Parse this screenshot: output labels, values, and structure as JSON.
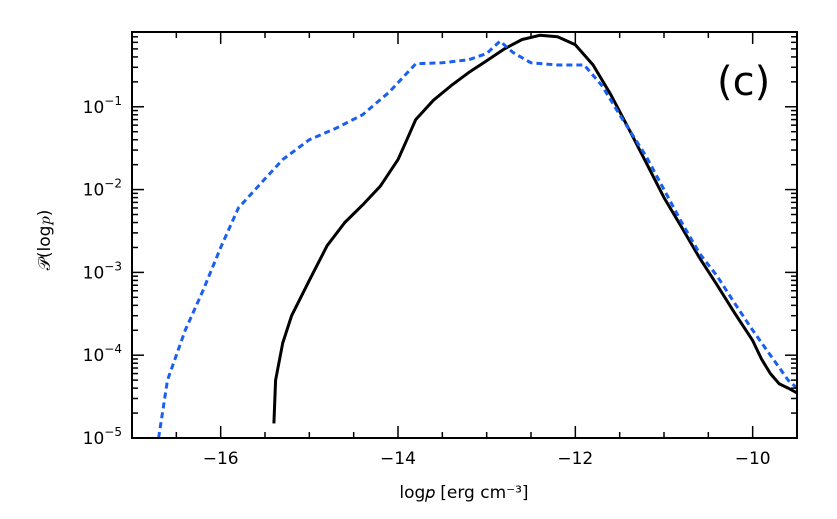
{
  "chart_data": {
    "type": "line",
    "title": "",
    "annotation": "(c)",
    "xlabel": "log𝑝 [erg cm⁻³]",
    "ylabel": "𝒫(log𝑝)",
    "xlim": [
      -17.0,
      -9.5
    ],
    "ylim": [
      1e-05,
      0.8
    ],
    "yscale": "log",
    "grid": false,
    "legend": "none",
    "x_ticks": [
      {
        "value": -16,
        "label": "−16"
      },
      {
        "value": -14,
        "label": "−14"
      },
      {
        "value": -12,
        "label": "−12"
      },
      {
        "value": -10,
        "label": "−10"
      }
    ],
    "y_ticks": [
      {
        "value": 1e-05,
        "base": "10",
        "exp": "−5"
      },
      {
        "value": 0.0001,
        "base": "10",
        "exp": "−4"
      },
      {
        "value": 0.001,
        "base": "10",
        "exp": "−3"
      },
      {
        "value": 0.01,
        "base": "10",
        "exp": "−2"
      },
      {
        "value": 0.1,
        "base": "10",
        "exp": "−1"
      }
    ],
    "series": [
      {
        "color": "#000000",
        "style": "solid",
        "points": [
          [
            -15.4,
            1.5e-05
          ],
          [
            -15.38,
            5e-05
          ],
          [
            -15.3,
            0.00014
          ],
          [
            -15.2,
            0.0003
          ],
          [
            -15.0,
            0.0008
          ],
          [
            -14.8,
            0.0021
          ],
          [
            -14.6,
            0.004
          ],
          [
            -14.4,
            0.0065
          ],
          [
            -14.2,
            0.011
          ],
          [
            -14.0,
            0.023
          ],
          [
            -13.9,
            0.04
          ],
          [
            -13.8,
            0.07
          ],
          [
            -13.6,
            0.12
          ],
          [
            -13.4,
            0.18
          ],
          [
            -13.2,
            0.26
          ],
          [
            -13.0,
            0.36
          ],
          [
            -12.8,
            0.5
          ],
          [
            -12.6,
            0.65
          ],
          [
            -12.4,
            0.73
          ],
          [
            -12.2,
            0.7
          ],
          [
            -12.0,
            0.56
          ],
          [
            -11.8,
            0.32
          ],
          [
            -11.6,
            0.14
          ],
          [
            -11.4,
            0.055
          ],
          [
            -11.2,
            0.021
          ],
          [
            -11.0,
            0.008
          ],
          [
            -10.8,
            0.0035
          ],
          [
            -10.6,
            0.0015
          ],
          [
            -10.4,
            0.0007
          ],
          [
            -10.2,
            0.00032
          ],
          [
            -10.0,
            0.00015
          ],
          [
            -9.9,
            9e-05
          ],
          [
            -9.8,
            6e-05
          ],
          [
            -9.7,
            4.5e-05
          ],
          [
            -9.6,
            4e-05
          ],
          [
            -9.5,
            3.5e-05
          ]
        ]
      },
      {
        "color": "#1a5ff0",
        "style": "dashed",
        "points": [
          [
            -16.7,
            1e-05
          ],
          [
            -16.6,
            5e-05
          ],
          [
            -16.4,
            0.0002
          ],
          [
            -16.2,
            0.0006
          ],
          [
            -16.0,
            0.002
          ],
          [
            -15.8,
            0.006
          ],
          [
            -15.5,
            0.0135
          ],
          [
            -15.3,
            0.023
          ],
          [
            -15.0,
            0.04
          ],
          [
            -14.7,
            0.055
          ],
          [
            -14.4,
            0.08
          ],
          [
            -14.1,
            0.15
          ],
          [
            -13.8,
            0.33
          ],
          [
            -13.5,
            0.34
          ],
          [
            -13.2,
            0.37
          ],
          [
            -13.0,
            0.44
          ],
          [
            -12.85,
            0.62
          ],
          [
            -12.7,
            0.45
          ],
          [
            -12.5,
            0.34
          ],
          [
            -12.2,
            0.32
          ],
          [
            -11.9,
            0.32
          ],
          [
            -11.7,
            0.18
          ],
          [
            -11.5,
            0.08
          ],
          [
            -11.2,
            0.025
          ],
          [
            -11.0,
            0.01
          ],
          [
            -10.8,
            0.004
          ],
          [
            -10.6,
            0.0017
          ],
          [
            -10.4,
            0.0009
          ],
          [
            -10.2,
            0.00042
          ],
          [
            -10.0,
            0.0002
          ],
          [
            -9.8,
            0.0001
          ],
          [
            -9.6,
            5e-05
          ],
          [
            -9.5,
            4e-05
          ]
        ]
      }
    ]
  }
}
